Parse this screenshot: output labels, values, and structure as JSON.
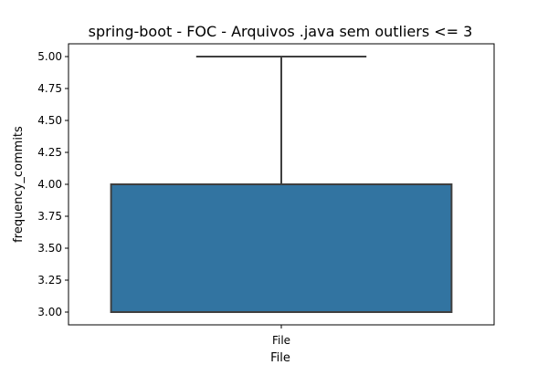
{
  "chart_data": {
    "type": "box",
    "title": "spring-boot - FOC - Arquivos .java sem outliers <= 3",
    "xlabel": "File",
    "ylabel": "frequency_commits",
    "categories": [
      "File"
    ],
    "boxes": [
      {
        "category": "File",
        "whisker_low": 3.0,
        "q1": 3.0,
        "median": 3.0,
        "q3": 4.0,
        "whisker_high": 5.0
      }
    ],
    "ylim": [
      2.9,
      5.1
    ],
    "yticks": [
      3.0,
      3.25,
      3.5,
      3.75,
      4.0,
      4.25,
      4.5,
      4.75,
      5.0
    ],
    "grid": false,
    "box_color": "#3274a1",
    "line_color": "#3f3f3f"
  }
}
